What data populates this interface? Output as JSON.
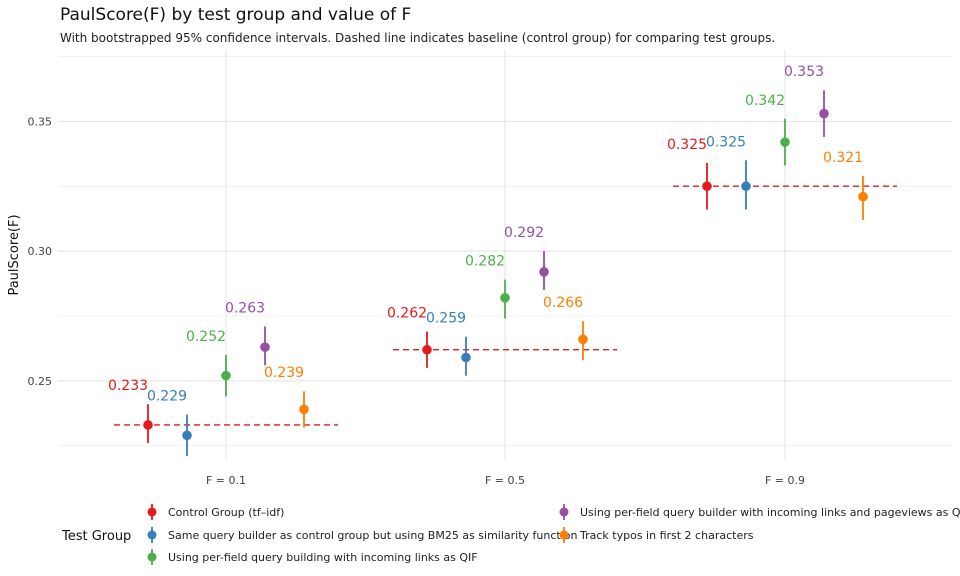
{
  "chart_data": {
    "type": "scatter",
    "title": "PaulScore(F) by test group and value of F",
    "subtitle": "With bootstrapped 95% confidence intervals. Dashed line indicates baseline (control group) for comparing test groups.",
    "ylabel": "PaulScore(F)",
    "xlabel": "",
    "categories": [
      "F = 0.1",
      "F = 0.5",
      "F = 0.9"
    ],
    "ylim": [
      0.2195,
      0.3775
    ],
    "yticks": [
      0.25,
      0.3,
      0.35
    ],
    "ytick_labels": [
      "0.25",
      "0.30",
      "0.35"
    ],
    "grid": true,
    "legend": {
      "title": "Test Group",
      "position": "bottom"
    },
    "baseline_color": "#e41a1c",
    "series": [
      {
        "name": "Control Group (tf–idf)",
        "color": "#e41a1c",
        "values": [
          0.233,
          0.262,
          0.325
        ],
        "labels": [
          "0.233",
          "0.262",
          "0.325"
        ],
        "lower": [
          0.226,
          0.255,
          0.316
        ],
        "upper": [
          0.241,
          0.269,
          0.334
        ]
      },
      {
        "name": "Same query builder as control group but using BM25 as similarity function",
        "color": "#377eb8",
        "values": [
          0.229,
          0.259,
          0.325
        ],
        "labels": [
          "0.229",
          "0.259",
          "0.325"
        ],
        "lower": [
          0.221,
          0.252,
          0.316
        ],
        "upper": [
          0.237,
          0.267,
          0.335
        ]
      },
      {
        "name": "Using per-field query building with incoming links as QIF",
        "color": "#4daf4a",
        "values": [
          0.252,
          0.282,
          0.342
        ],
        "labels": [
          "0.252",
          "0.282",
          "0.342"
        ],
        "lower": [
          0.244,
          0.274,
          0.333
        ],
        "upper": [
          0.26,
          0.289,
          0.351
        ]
      },
      {
        "name": "Using per-field query builder with incoming links and pageviews as QIFs",
        "color": "#984ea3",
        "values": [
          0.263,
          0.292,
          0.353
        ],
        "labels": [
          "0.263",
          "0.292",
          "0.353"
        ],
        "lower": [
          0.256,
          0.285,
          0.344
        ],
        "upper": [
          0.271,
          0.3,
          0.362
        ]
      },
      {
        "name": "Track typos in first 2 characters",
        "color": "#ff7f00",
        "values": [
          0.239,
          0.266,
          0.321
        ],
        "labels": [
          "0.239",
          "0.266",
          "0.321"
        ],
        "lower": [
          0.232,
          0.258,
          0.312
        ],
        "upper": [
          0.246,
          0.273,
          0.329
        ]
      }
    ]
  }
}
